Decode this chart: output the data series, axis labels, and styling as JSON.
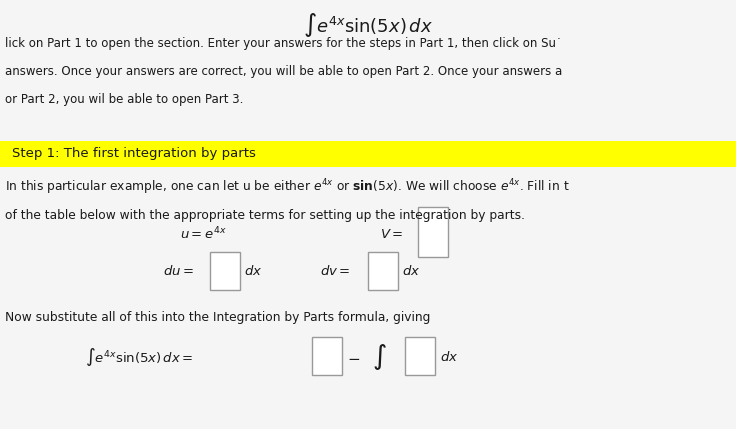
{
  "bg_color": "#e8e8e8",
  "content_bg": "#ffffff",
  "yellow_bar_color": "#ffff00",
  "title_formula": "$\\int e^{4x} \\sin(5x)\\, dx$",
  "intro_text_lines": [
    "lick on Part 1 to open the section. Enter your answers for the steps in Part 1, then click on Su˙",
    "answers. Once your answers are correct, you will be able to open Part 2. Once your answers a",
    "or Part 2, you wil be able to open Part 3."
  ],
  "step_label": "Step 1: The first integration by parts",
  "body_line1": "In this particular example, one can let u be either $e^{4x}$ or $\\mathbf{sin}(5x)$. We will choose $e^{4x}$. Fill in t",
  "body_line2": "of the table below with the appropriate terms for setting up the integration by parts.",
  "bottom_line1": "Now substitute all of this into the Integration by Parts formula, giving",
  "text_color": "#1a1a1a",
  "step_text_color": "#1a1a1a",
  "box_color": "#ffffff",
  "box_edge_color": "#999999",
  "title_fontsize": 13,
  "intro_fontsize": 8.5,
  "step_fontsize": 9.5,
  "body_fontsize": 8.8,
  "math_fontsize": 9.5
}
